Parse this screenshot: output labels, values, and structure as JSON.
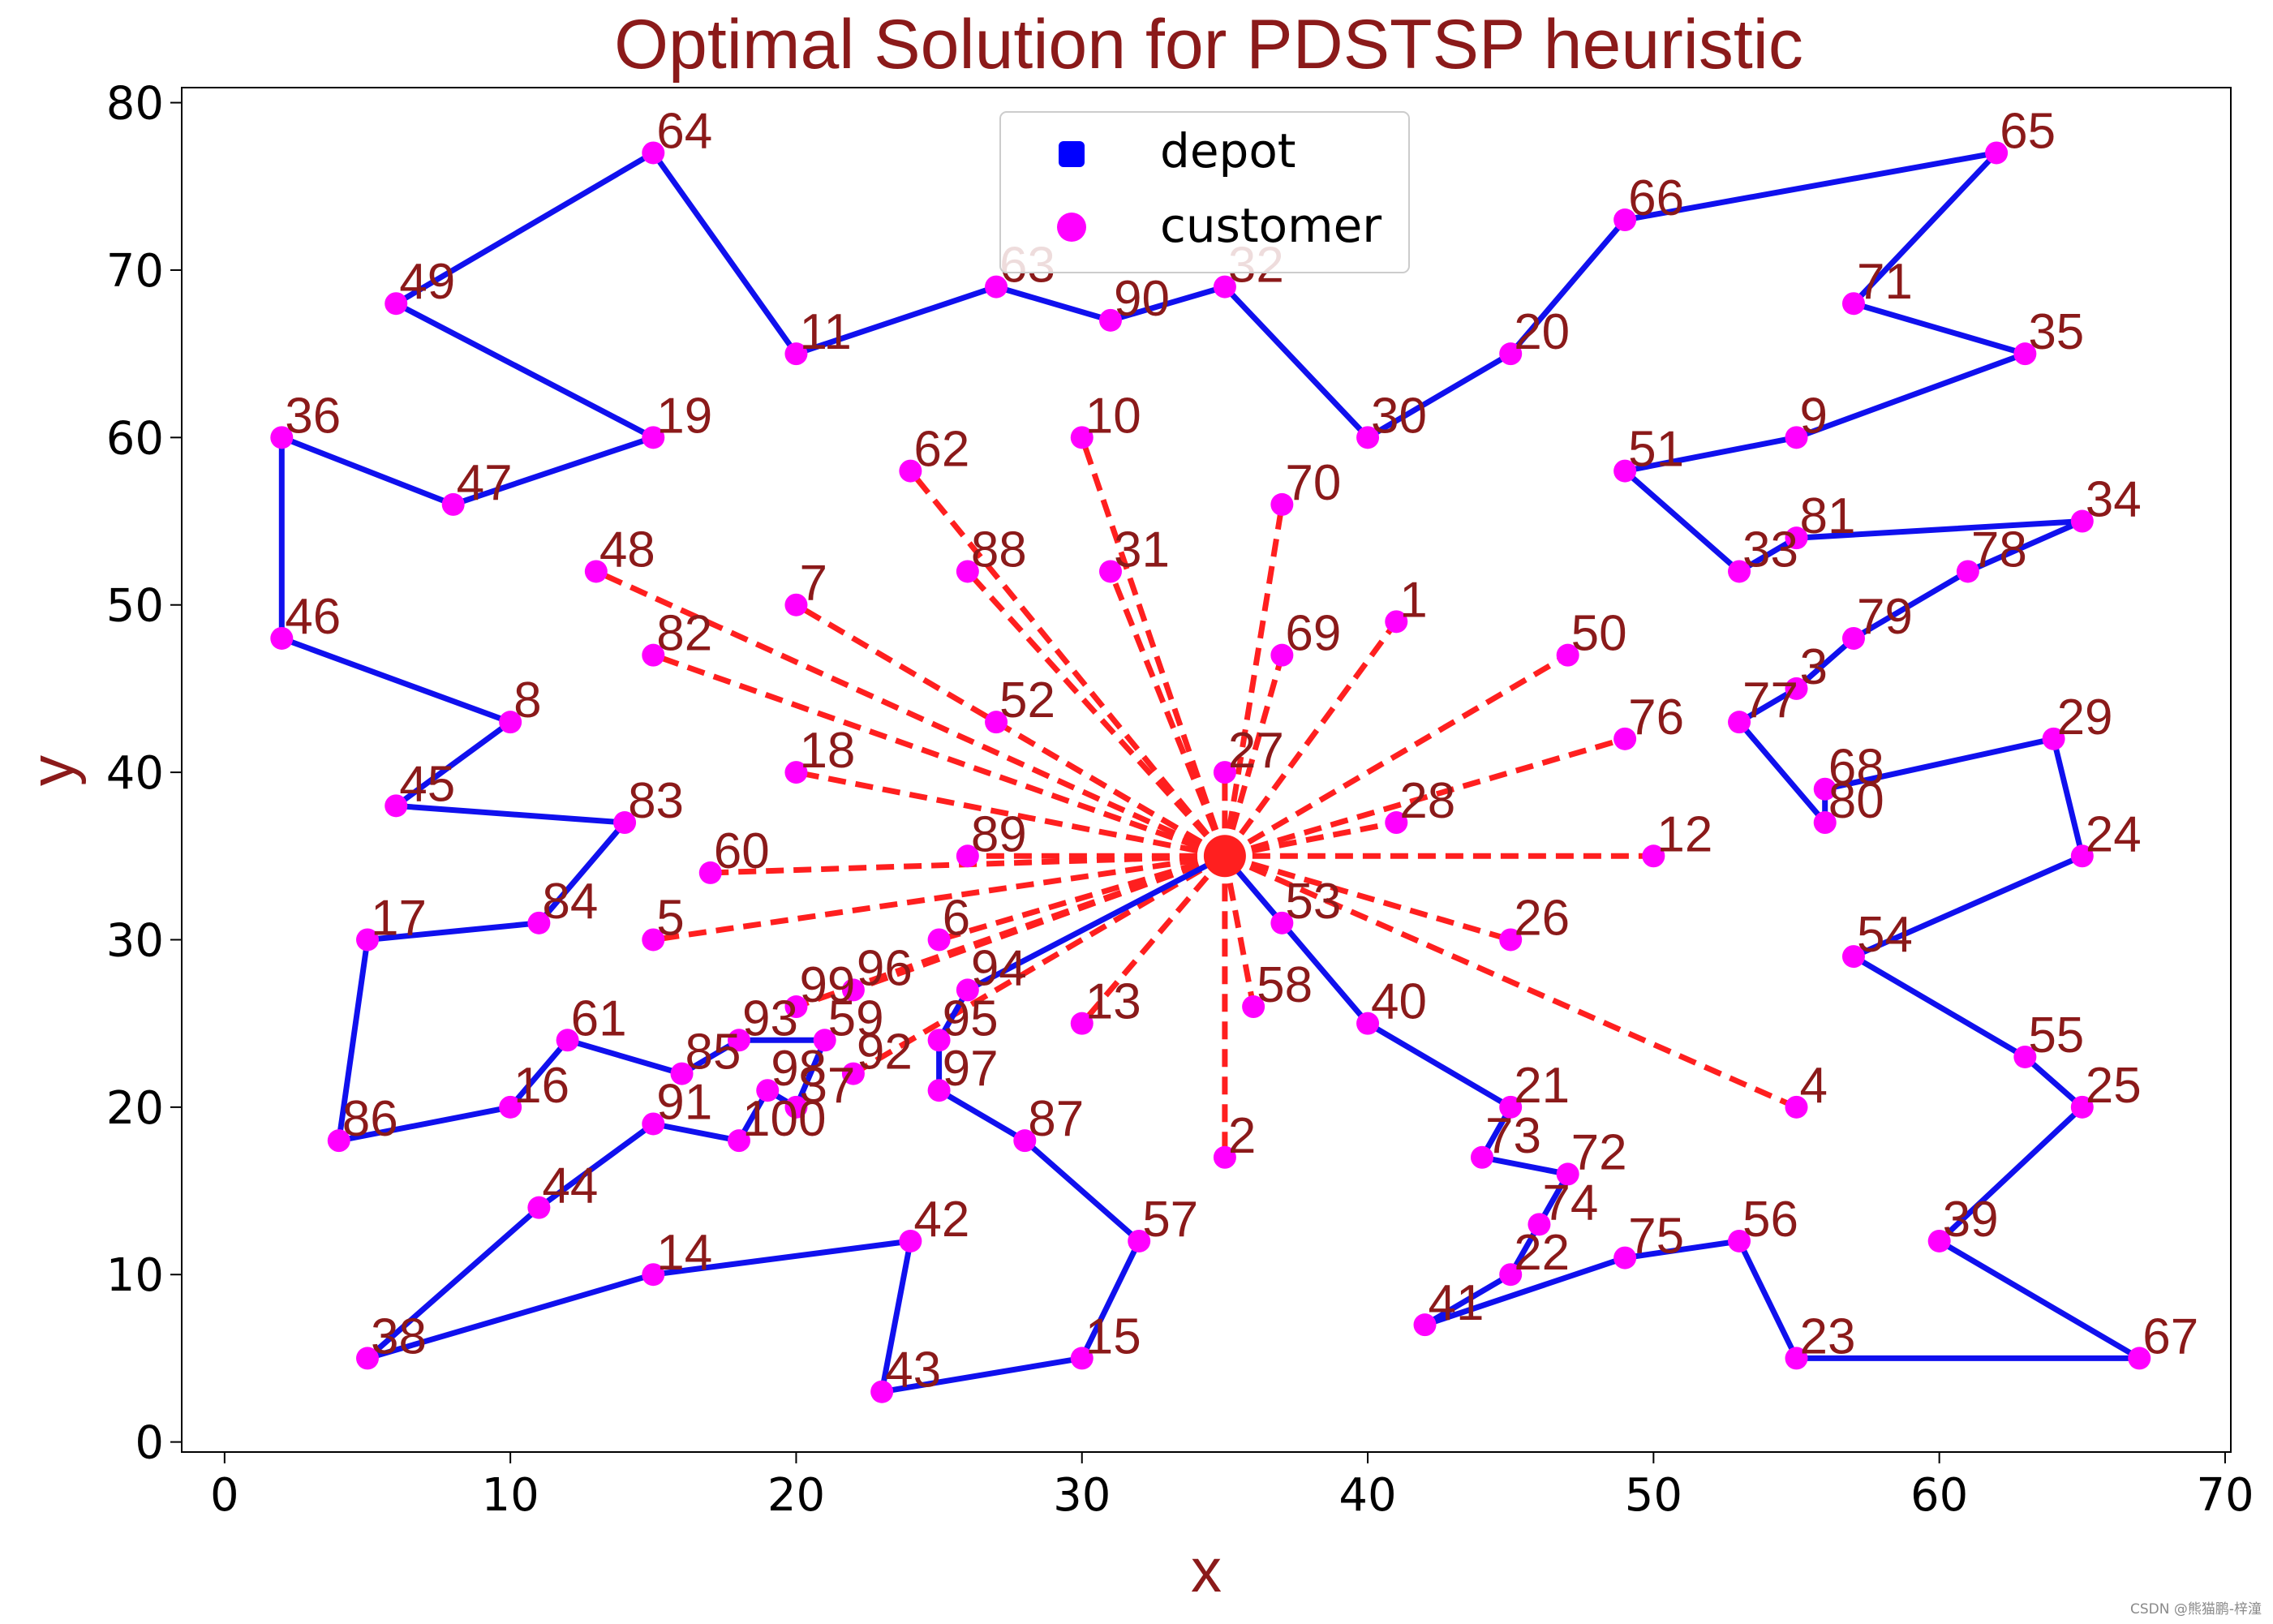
{
  "chart_data": {
    "type": "scatter",
    "title": "Optimal Solution for PDSTSP heuristic",
    "xlabel": "x",
    "ylabel": "y",
    "xlim": [
      -1.5,
      70.2
    ],
    "ylim": [
      -0.6,
      80.9
    ],
    "xticks": [
      0,
      10,
      20,
      30,
      40,
      50,
      60,
      70
    ],
    "yticks": [
      0,
      10,
      20,
      30,
      40,
      50,
      60,
      70,
      80
    ],
    "grid": false,
    "legend": {
      "placement": "top-center",
      "entries": [
        {
          "label": "depot",
          "marker": "square",
          "color": "#0000ff"
        },
        {
          "label": "customer",
          "marker": "circle",
          "color": "#ff00ff"
        }
      ]
    },
    "colors": {
      "depot": "#0000ff",
      "customer": "#ff00ff",
      "truck_route": "#1010ee",
      "drone_route": "#ff1f1f",
      "text": "#8b1a1a"
    },
    "depot": {
      "x": 35,
      "y": 35
    },
    "customers": [
      {
        "id": "1",
        "x": 41,
        "y": 49
      },
      {
        "id": "2",
        "x": 35,
        "y": 17
      },
      {
        "id": "3",
        "x": 55,
        "y": 45
      },
      {
        "id": "4",
        "x": 55,
        "y": 20
      },
      {
        "id": "5",
        "x": 15,
        "y": 30
      },
      {
        "id": "6",
        "x": 25,
        "y": 30
      },
      {
        "id": "7",
        "x": 20,
        "y": 50
      },
      {
        "id": "8",
        "x": 10,
        "y": 43
      },
      {
        "id": "9",
        "x": 55,
        "y": 60
      },
      {
        "id": "10",
        "x": 30,
        "y": 60
      },
      {
        "id": "11",
        "x": 20,
        "y": 65
      },
      {
        "id": "12",
        "x": 50,
        "y": 35
      },
      {
        "id": "13",
        "x": 30,
        "y": 25
      },
      {
        "id": "14",
        "x": 15,
        "y": 10
      },
      {
        "id": "15",
        "x": 30,
        "y": 5
      },
      {
        "id": "16",
        "x": 10,
        "y": 20
      },
      {
        "id": "17",
        "x": 5,
        "y": 30
      },
      {
        "id": "18",
        "x": 20,
        "y": 40
      },
      {
        "id": "19",
        "x": 15,
        "y": 60
      },
      {
        "id": "20",
        "x": 45,
        "y": 65
      },
      {
        "id": "21",
        "x": 45,
        "y": 20
      },
      {
        "id": "22",
        "x": 45,
        "y": 10
      },
      {
        "id": "23",
        "x": 55,
        "y": 5
      },
      {
        "id": "24",
        "x": 65,
        "y": 35
      },
      {
        "id": "25",
        "x": 65,
        "y": 20
      },
      {
        "id": "26",
        "x": 45,
        "y": 30
      },
      {
        "id": "27",
        "x": 35,
        "y": 40
      },
      {
        "id": "28",
        "x": 41,
        "y": 37
      },
      {
        "id": "29",
        "x": 64,
        "y": 42
      },
      {
        "id": "30",
        "x": 40,
        "y": 60
      },
      {
        "id": "31",
        "x": 31,
        "y": 52
      },
      {
        "id": "32",
        "x": 35,
        "y": 69
      },
      {
        "id": "33",
        "x": 53,
        "y": 52
      },
      {
        "id": "34",
        "x": 65,
        "y": 55
      },
      {
        "id": "35",
        "x": 63,
        "y": 65
      },
      {
        "id": "36",
        "x": 2,
        "y": 60
      },
      {
        "id": "37",
        "x": 20,
        "y": 20
      },
      {
        "id": "38",
        "x": 5,
        "y": 5
      },
      {
        "id": "39",
        "x": 60,
        "y": 12
      },
      {
        "id": "40",
        "x": 40,
        "y": 25
      },
      {
        "id": "41",
        "x": 42,
        "y": 7
      },
      {
        "id": "42",
        "x": 24,
        "y": 12
      },
      {
        "id": "43",
        "x": 23,
        "y": 3
      },
      {
        "id": "44",
        "x": 11,
        "y": 14
      },
      {
        "id": "45",
        "x": 6,
        "y": 38
      },
      {
        "id": "46",
        "x": 2,
        "y": 48
      },
      {
        "id": "47",
        "x": 8,
        "y": 56
      },
      {
        "id": "48",
        "x": 13,
        "y": 52
      },
      {
        "id": "49",
        "x": 6,
        "y": 68
      },
      {
        "id": "50",
        "x": 47,
        "y": 47
      },
      {
        "id": "51",
        "x": 49,
        "y": 58
      },
      {
        "id": "52",
        "x": 27,
        "y": 43
      },
      {
        "id": "53",
        "x": 37,
        "y": 31
      },
      {
        "id": "54",
        "x": 57,
        "y": 29
      },
      {
        "id": "55",
        "x": 63,
        "y": 23
      },
      {
        "id": "56",
        "x": 53,
        "y": 12
      },
      {
        "id": "57",
        "x": 32,
        "y": 12
      },
      {
        "id": "58",
        "x": 36,
        "y": 26
      },
      {
        "id": "59",
        "x": 21,
        "y": 24
      },
      {
        "id": "60",
        "x": 17,
        "y": 34
      },
      {
        "id": "61",
        "x": 12,
        "y": 24
      },
      {
        "id": "62",
        "x": 24,
        "y": 58
      },
      {
        "id": "63",
        "x": 27,
        "y": 69
      },
      {
        "id": "64",
        "x": 15,
        "y": 77
      },
      {
        "id": "65",
        "x": 62,
        "y": 77
      },
      {
        "id": "66",
        "x": 49,
        "y": 73
      },
      {
        "id": "67",
        "x": 67,
        "y": 5
      },
      {
        "id": "68",
        "x": 56,
        "y": 39
      },
      {
        "id": "69",
        "x": 37,
        "y": 47
      },
      {
        "id": "70",
        "x": 37,
        "y": 56
      },
      {
        "id": "71",
        "x": 57,
        "y": 68
      },
      {
        "id": "72",
        "x": 47,
        "y": 16
      },
      {
        "id": "73",
        "x": 44,
        "y": 17
      },
      {
        "id": "74",
        "x": 46,
        "y": 13
      },
      {
        "id": "75",
        "x": 49,
        "y": 11
      },
      {
        "id": "76",
        "x": 49,
        "y": 42
      },
      {
        "id": "77",
        "x": 53,
        "y": 43
      },
      {
        "id": "78",
        "x": 61,
        "y": 52
      },
      {
        "id": "79",
        "x": 57,
        "y": 48
      },
      {
        "id": "80",
        "x": 56,
        "y": 37
      },
      {
        "id": "81",
        "x": 55,
        "y": 54
      },
      {
        "id": "82",
        "x": 15,
        "y": 47
      },
      {
        "id": "83",
        "x": 14,
        "y": 37
      },
      {
        "id": "84",
        "x": 11,
        "y": 31
      },
      {
        "id": "85",
        "x": 16,
        "y": 22
      },
      {
        "id": "86",
        "x": 4,
        "y": 18
      },
      {
        "id": "87",
        "x": 28,
        "y": 18
      },
      {
        "id": "88",
        "x": 26,
        "y": 52
      },
      {
        "id": "89",
        "x": 26,
        "y": 35
      },
      {
        "id": "90",
        "x": 31,
        "y": 67
      },
      {
        "id": "91",
        "x": 15,
        "y": 19
      },
      {
        "id": "92",
        "x": 22,
        "y": 22
      },
      {
        "id": "93",
        "x": 18,
        "y": 24
      },
      {
        "id": "94",
        "x": 26,
        "y": 27
      },
      {
        "id": "95",
        "x": 25,
        "y": 24
      },
      {
        "id": "96",
        "x": 22,
        "y": 27
      },
      {
        "id": "97",
        "x": 25,
        "y": 21
      },
      {
        "id": "98",
        "x": 19,
        "y": 21
      },
      {
        "id": "99",
        "x": 20,
        "y": 26
      },
      {
        "id": "100",
        "x": 18,
        "y": 18
      }
    ],
    "truck_route": [
      "depot",
      "53",
      "40",
      "21",
      "73",
      "72",
      "74",
      "22",
      "41",
      "75",
      "56",
      "23",
      "67",
      "39",
      "25",
      "55",
      "54",
      "24",
      "29",
      "68",
      "80",
      "77",
      "3",
      "79",
      "78",
      "34",
      "81",
      "33",
      "51",
      "9",
      "35",
      "71",
      "65",
      "66",
      "20",
      "30",
      "32",
      "90",
      "63",
      "11",
      "64",
      "49",
      "19",
      "47",
      "36",
      "46",
      "8",
      "45",
      "83",
      "84",
      "17",
      "86",
      "16",
      "61",
      "85",
      "93",
      "59",
      "37",
      "98",
      "100",
      "91",
      "44",
      "38",
      "14",
      "42",
      "43",
      "15",
      "57",
      "87",
      "97",
      "95",
      "94",
      "depot"
    ],
    "drone_customers": [
      "1",
      "2",
      "4",
      "5",
      "6",
      "7",
      "10",
      "12",
      "13",
      "18",
      "26",
      "27",
      "28",
      "31",
      "48",
      "50",
      "52",
      "58",
      "60",
      "62",
      "69",
      "70",
      "76",
      "82",
      "88",
      "89",
      "92",
      "96",
      "99"
    ]
  }
}
